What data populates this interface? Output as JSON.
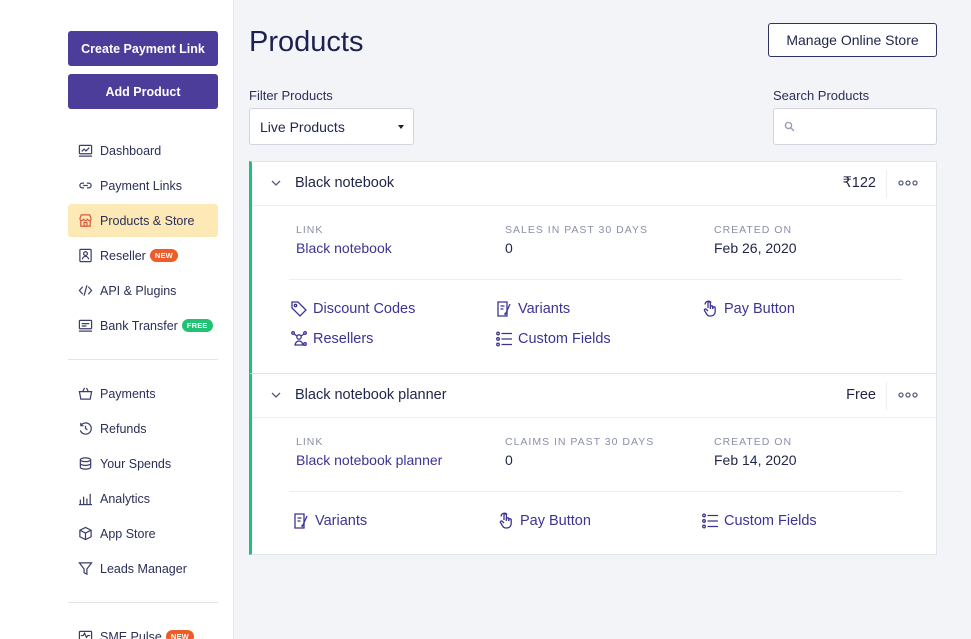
{
  "sidebar": {
    "create_payment_link": "Create Payment Link",
    "add_product": "Add Product",
    "nav_primary": [
      {
        "label": "Dashboard",
        "icon": "dashboard-icon"
      },
      {
        "label": "Payment Links",
        "icon": "link-icon"
      },
      {
        "label": "Products & Store",
        "icon": "store-icon",
        "active": true
      },
      {
        "label": "Reseller",
        "icon": "reseller-icon",
        "badge": "NEW"
      },
      {
        "label": "API & Plugins",
        "icon": "code-icon"
      },
      {
        "label": "Bank Transfer",
        "icon": "bank-icon",
        "badge": "FREE"
      }
    ],
    "nav_secondary": [
      {
        "label": "Payments",
        "icon": "basket-icon"
      },
      {
        "label": "Refunds",
        "icon": "refund-icon"
      },
      {
        "label": "Your Spends",
        "icon": "coins-icon"
      },
      {
        "label": "Analytics",
        "icon": "analytics-icon"
      },
      {
        "label": "App Store",
        "icon": "box-icon"
      },
      {
        "label": "Leads Manager",
        "icon": "funnel-icon"
      }
    ],
    "nav_tertiary": [
      {
        "label": "SME Pulse",
        "icon": "pulse-icon",
        "badge": "NEW"
      }
    ]
  },
  "header": {
    "title": "Products",
    "manage_store": "Manage Online Store"
  },
  "filters": {
    "filter_label": "Filter Products",
    "filter_value": "Live Products",
    "search_label": "Search Products",
    "search_placeholder": ""
  },
  "products": [
    {
      "name": "Black notebook",
      "price": "₹122",
      "link_label": "LINK",
      "link": "Black notebook",
      "stat_label": "SALES IN PAST 30 DAYS",
      "stat_value": "0",
      "created_label": "CREATED ON",
      "created": "Feb 26, 2020",
      "actions": [
        "Discount Codes",
        "Variants",
        "Pay Button",
        "Resellers",
        "Custom Fields"
      ]
    },
    {
      "name": "Black notebook planner",
      "price": "Free",
      "link_label": "LINK",
      "link": "Black notebook planner",
      "stat_label": "CLAIMS IN PAST 30 DAYS",
      "stat_value": "0",
      "created_label": "CREATED ON",
      "created": "Feb 14, 2020",
      "actions": [
        "Variants",
        "Pay Button",
        "Custom Fields"
      ]
    }
  ]
}
